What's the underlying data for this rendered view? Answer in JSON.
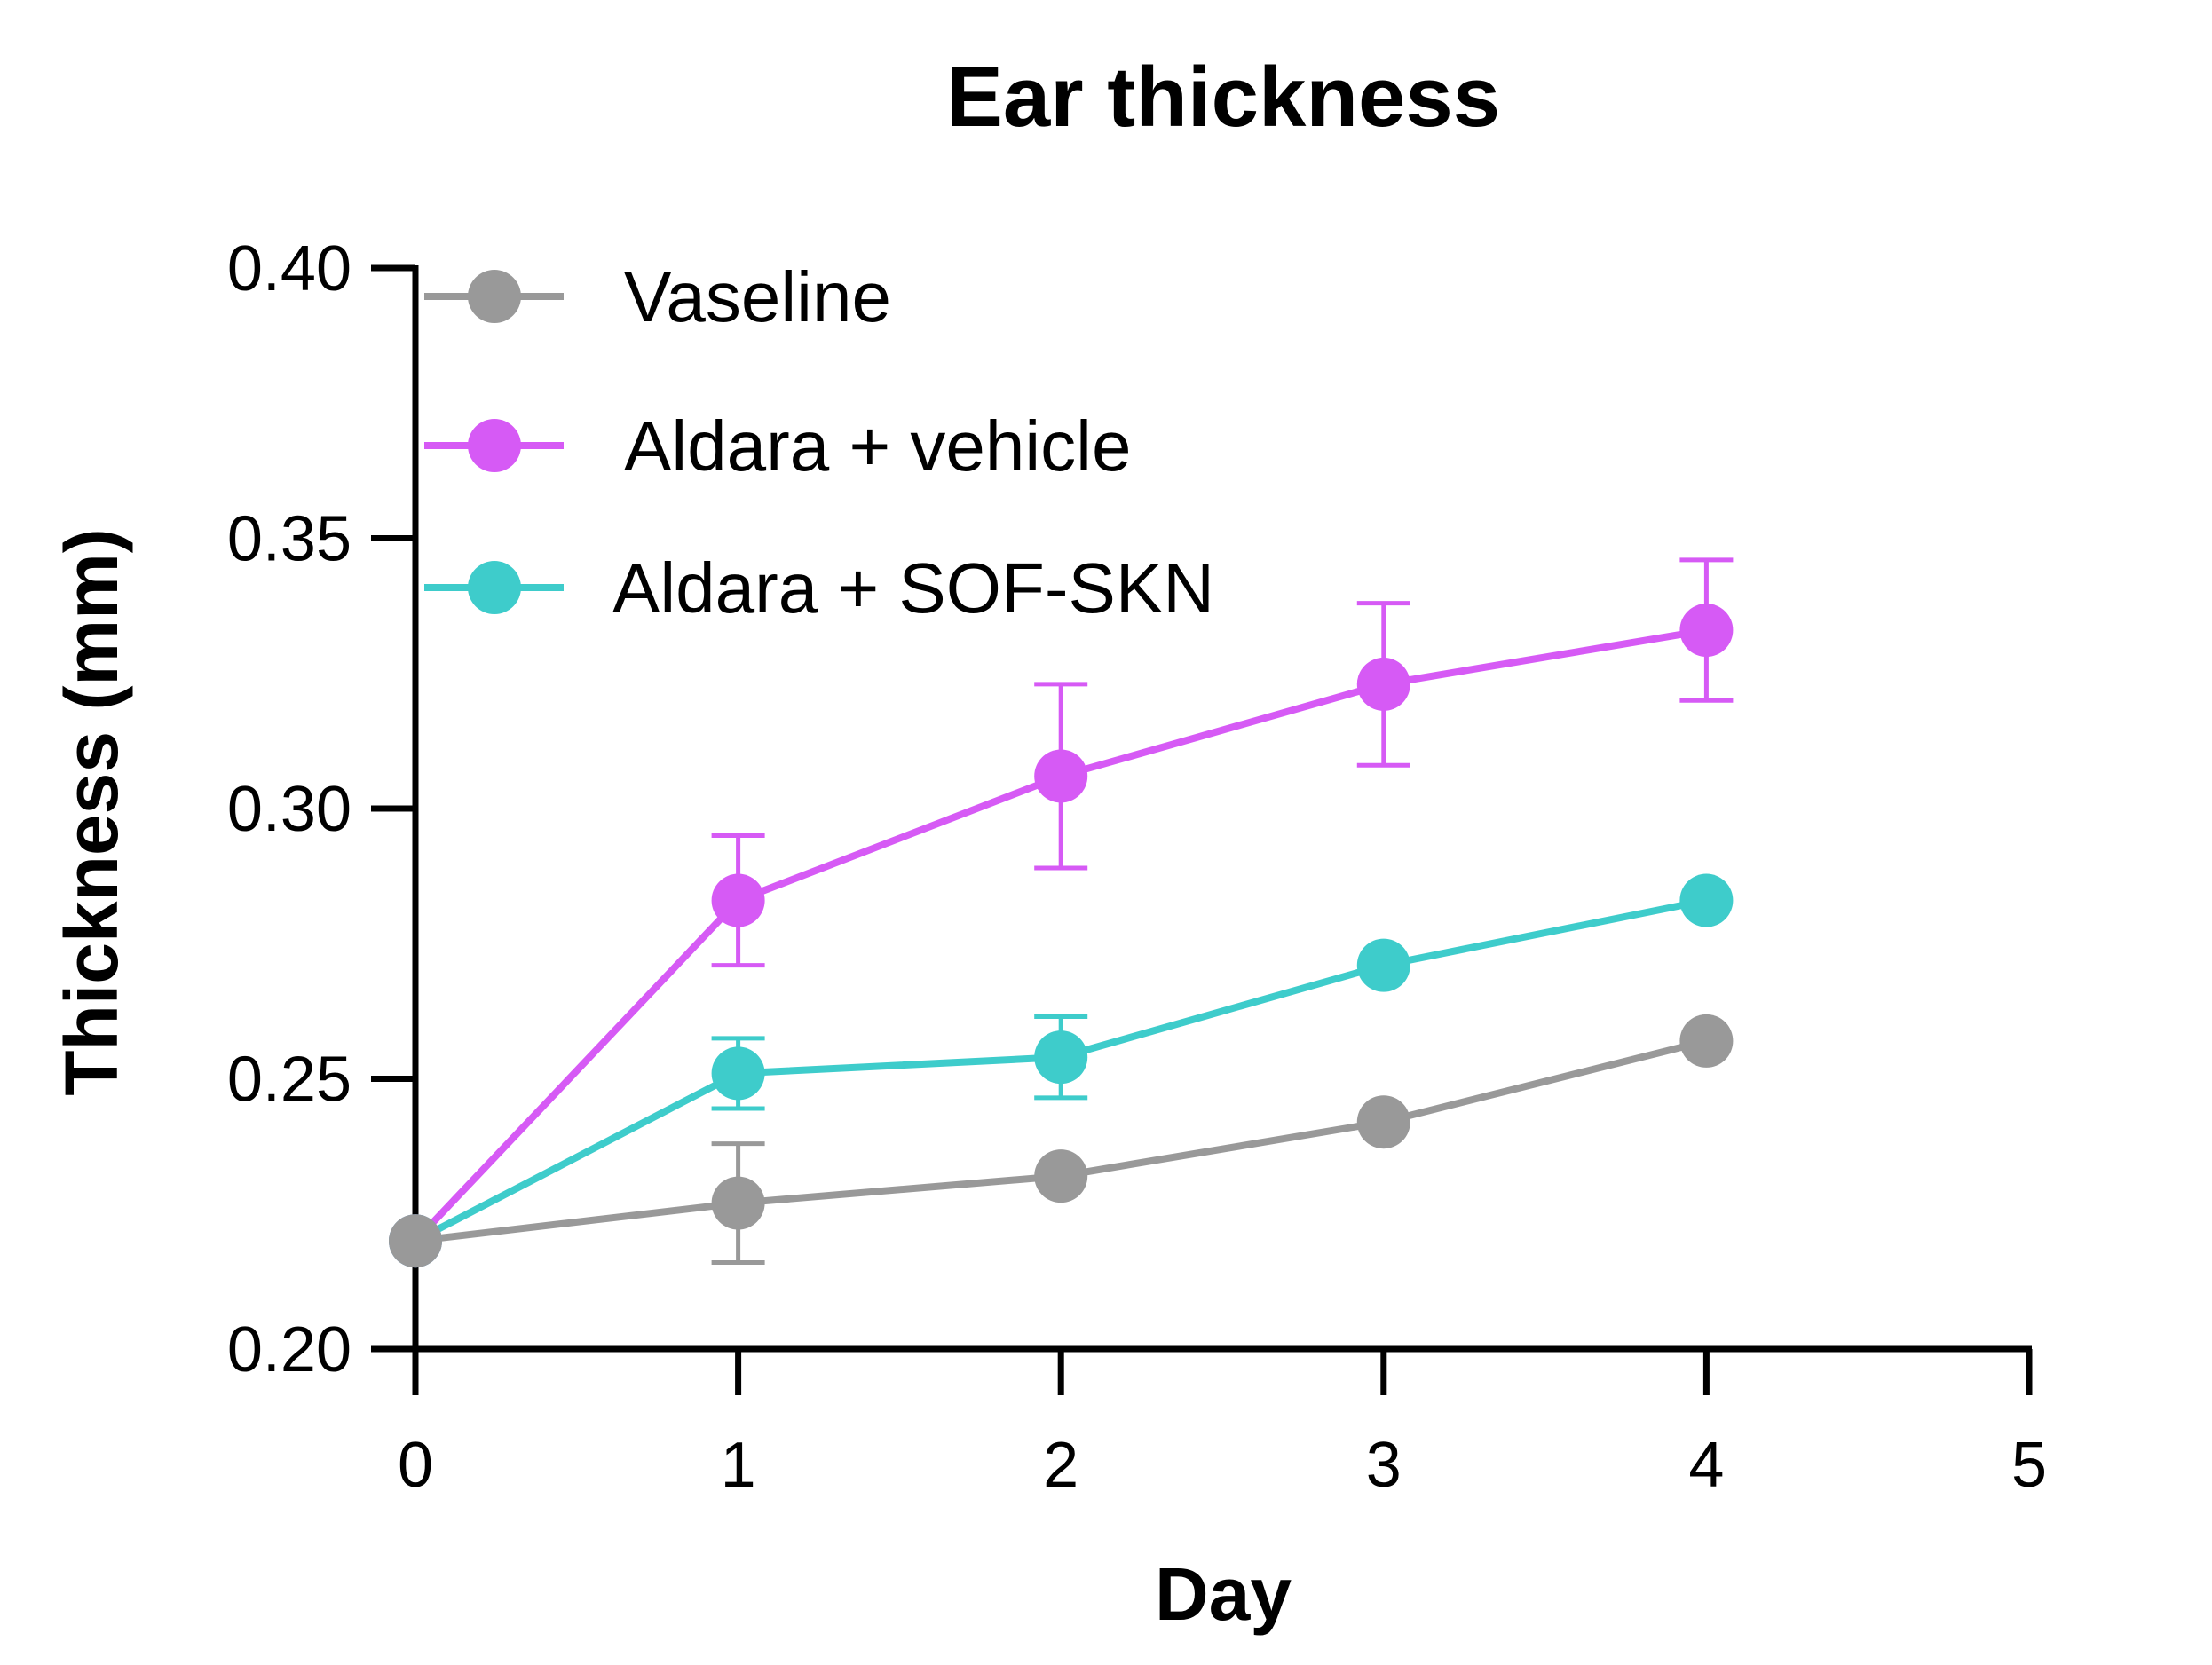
{
  "chart_data": {
    "type": "line",
    "title": "Ear thickness",
    "xlabel": "Day",
    "ylabel": "Thickness (mm)",
    "xlim": [
      0,
      5
    ],
    "ylim": [
      0.2,
      0.4
    ],
    "xticks": [
      "0",
      "1",
      "2",
      "3",
      "4",
      "5"
    ],
    "yticks": [
      "0.20",
      "0.25",
      "0.30",
      "0.35",
      "0.40"
    ],
    "grid": false,
    "legend_position": "top-left",
    "x": [
      0,
      1,
      2,
      3,
      4
    ],
    "series": [
      {
        "name": "Vaseline",
        "color": "#999999",
        "values": [
          0.22,
          0.227,
          0.232,
          0.242,
          0.257
        ],
        "errors": [
          0,
          0.011,
          0,
          0,
          0
        ]
      },
      {
        "name": "Aldara + vehicle",
        "color": "#d65af5",
        "values": [
          0.22,
          0.283,
          0.306,
          0.323,
          0.333
        ],
        "errors": [
          0,
          0.012,
          0.017,
          0.015,
          0.013
        ]
      },
      {
        "name": "Aldara + SOF-SKN",
        "color": "#3ecccb",
        "values": [
          0.22,
          0.251,
          0.254,
          0.271,
          0.283
        ],
        "errors": [
          0,
          0.0065,
          0.0075,
          0,
          0
        ]
      }
    ]
  }
}
